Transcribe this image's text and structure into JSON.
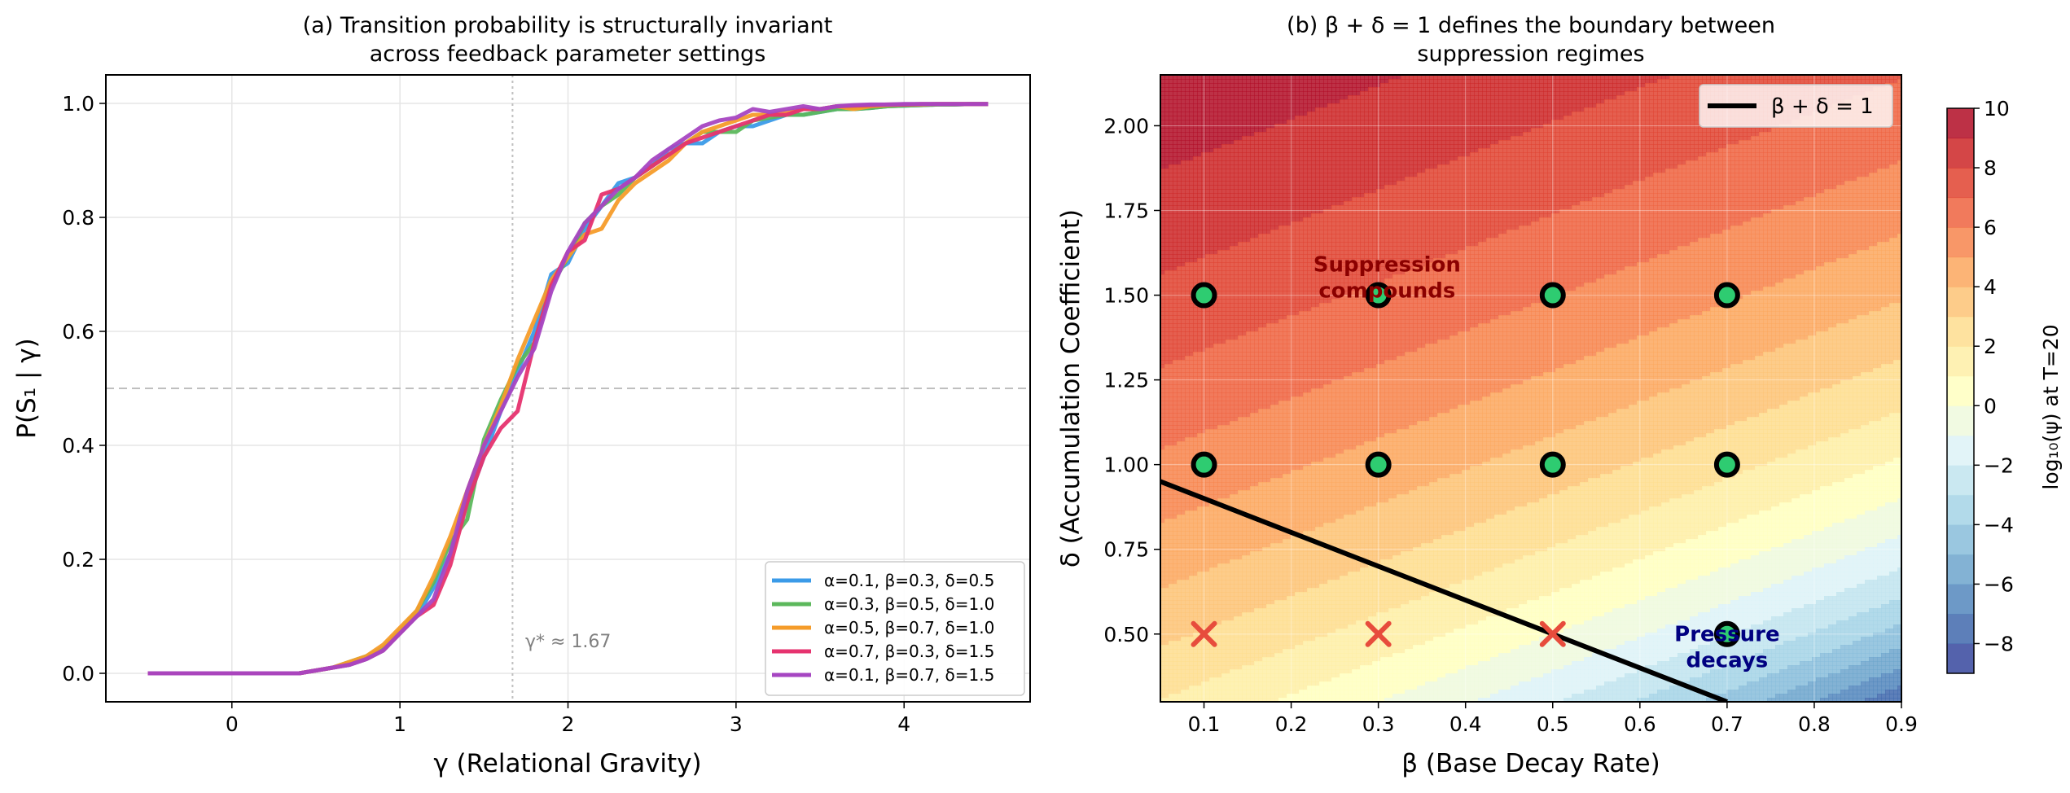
{
  "colors": {
    "series": [
      "#3b9be8",
      "#5cb85c",
      "#f59c2a",
      "#e6336f",
      "#a646c2"
    ],
    "boundary": "#000000",
    "marker_fill": "#2ecc71",
    "cross": "#e74c3c",
    "annot_dark_red": "#8b0000",
    "annot_navy": "#000080",
    "grid": "#e6e6e6",
    "ref_line": "#bfbfbf"
  },
  "chart_data": [
    {
      "type": "line",
      "title_line1": "(a)  Transition probability is structurally invariant",
      "title_line2": "across feedback parameter settings",
      "xlabel": "γ  (Relational Gravity)",
      "ylabel": "P(S₁ | γ)",
      "xlim": [
        -0.75,
        4.75
      ],
      "ylim": [
        -0.05,
        1.05
      ],
      "x_ticks": [
        0,
        1,
        2,
        3,
        4
      ],
      "x_tick_labels": [
        "0",
        "1",
        "2",
        "3",
        "4"
      ],
      "y_ticks": [
        0.0,
        0.2,
        0.4,
        0.6,
        0.8,
        1.0
      ],
      "y_tick_labels": [
        "0.0",
        "0.2",
        "0.4",
        "0.6",
        "0.8",
        "1.0"
      ],
      "grid": true,
      "threshold_x": 1.67,
      "threshold_label": "γ* ≈ 1.67",
      "half_line_y": 0.5,
      "legend_position": "lower-right",
      "x": [
        -0.5,
        -0.4,
        -0.3,
        -0.2,
        -0.1,
        0.0,
        0.1,
        0.2,
        0.3,
        0.4,
        0.5,
        0.6,
        0.7,
        0.8,
        0.9,
        1.0,
        1.1,
        1.2,
        1.3,
        1.4,
        1.5,
        1.6,
        1.7,
        1.8,
        1.9,
        2.0,
        2.1,
        2.2,
        2.3,
        2.4,
        2.5,
        2.6,
        2.7,
        2.8,
        2.9,
        3.0,
        3.1,
        3.2,
        3.3,
        3.4,
        3.5,
        3.6,
        3.7,
        3.8,
        3.9,
        4.0,
        4.1,
        4.2,
        4.3,
        4.4,
        4.5
      ],
      "series": [
        {
          "name": "α=0.1, β=0.3, δ=0.5",
          "values": [
            0,
            0,
            0,
            0,
            0,
            0,
            0,
            0,
            0,
            0,
            0.005,
            0.01,
            0.015,
            0.025,
            0.04,
            0.07,
            0.1,
            0.15,
            0.21,
            0.3,
            0.38,
            0.46,
            0.53,
            0.6,
            0.7,
            0.72,
            0.78,
            0.82,
            0.86,
            0.87,
            0.89,
            0.92,
            0.93,
            0.93,
            0.95,
            0.96,
            0.96,
            0.97,
            0.98,
            0.98,
            0.985,
            0.99,
            0.99,
            0.992,
            0.995,
            0.996,
            0.997,
            0.998,
            0.998,
            0.999,
            0.999
          ]
        },
        {
          "name": "α=0.3, β=0.5, δ=1.0",
          "values": [
            0,
            0,
            0,
            0,
            0,
            0,
            0,
            0,
            0,
            0,
            0.005,
            0.01,
            0.02,
            0.03,
            0.045,
            0.075,
            0.11,
            0.16,
            0.23,
            0.27,
            0.41,
            0.48,
            0.54,
            0.58,
            0.68,
            0.73,
            0.79,
            0.82,
            0.84,
            0.87,
            0.89,
            0.91,
            0.93,
            0.95,
            0.95,
            0.95,
            0.97,
            0.975,
            0.98,
            0.98,
            0.985,
            0.99,
            0.99,
            0.992,
            0.995,
            0.996,
            0.997,
            0.998,
            0.998,
            0.999,
            0.999
          ]
        },
        {
          "name": "α=0.5, β=0.7, δ=1.0",
          "values": [
            0,
            0,
            0,
            0,
            0,
            0,
            0,
            0,
            0,
            0,
            0.005,
            0.01,
            0.02,
            0.03,
            0.05,
            0.08,
            0.11,
            0.17,
            0.24,
            0.32,
            0.4,
            0.47,
            0.55,
            0.62,
            0.69,
            0.73,
            0.77,
            0.78,
            0.83,
            0.86,
            0.88,
            0.9,
            0.93,
            0.95,
            0.96,
            0.97,
            0.98,
            0.98,
            0.985,
            0.99,
            0.99,
            0.995,
            0.99,
            0.995,
            0.997,
            0.998,
            0.998,
            0.999,
            0.999,
            0.999,
            0.999
          ]
        },
        {
          "name": "α=0.7, β=0.3, δ=1.5",
          "values": [
            0,
            0,
            0,
            0,
            0,
            0,
            0,
            0,
            0,
            0,
            0.005,
            0.01,
            0.015,
            0.025,
            0.04,
            0.07,
            0.1,
            0.12,
            0.19,
            0.3,
            0.38,
            0.43,
            0.46,
            0.58,
            0.68,
            0.74,
            0.76,
            0.84,
            0.85,
            0.87,
            0.89,
            0.91,
            0.93,
            0.94,
            0.95,
            0.96,
            0.97,
            0.98,
            0.98,
            0.99,
            0.99,
            0.995,
            0.996,
            0.997,
            0.998,
            0.998,
            0.999,
            0.999,
            0.999,
            0.999,
            0.999
          ]
        },
        {
          "name": "α=0.1, β=0.7, δ=1.5",
          "values": [
            0,
            0,
            0,
            0,
            0,
            0,
            0,
            0,
            0,
            0,
            0.005,
            0.01,
            0.015,
            0.025,
            0.04,
            0.07,
            0.1,
            0.13,
            0.21,
            0.32,
            0.4,
            0.46,
            0.52,
            0.57,
            0.67,
            0.74,
            0.79,
            0.82,
            0.85,
            0.87,
            0.9,
            0.92,
            0.94,
            0.96,
            0.97,
            0.975,
            0.99,
            0.985,
            0.99,
            0.995,
            0.99,
            0.995,
            0.997,
            0.998,
            0.998,
            0.999,
            0.999,
            0.999,
            0.999,
            0.999,
            0.999
          ]
        }
      ]
    },
    {
      "type": "heatmap",
      "title_line1": "(b)  β + δ = 1 defines the boundary between",
      "title_line2": "suppression regimes",
      "xlabel": "β  (Base Decay Rate)",
      "ylabel": "δ  (Accumulation Coefficient)",
      "xlim": [
        0.05,
        0.9
      ],
      "ylim": [
        0.3,
        2.15
      ],
      "x_ticks": [
        0.1,
        0.2,
        0.3,
        0.4,
        0.5,
        0.6,
        0.7,
        0.8,
        0.9
      ],
      "x_tick_labels": [
        "0.1",
        "0.2",
        "0.3",
        "0.4",
        "0.5",
        "0.6",
        "0.7",
        "0.8",
        "0.9"
      ],
      "y_ticks": [
        0.5,
        0.75,
        1.0,
        1.25,
        1.5,
        1.75,
        2.0
      ],
      "y_tick_labels": [
        "0.50",
        "0.75",
        "1.00",
        "1.25",
        "1.50",
        "1.75",
        "2.00"
      ],
      "colorbar_label": "log₁₀(ψ) at T=20",
      "colorbar_range": [
        -9,
        10
      ],
      "colorbar_ticks": [
        -8,
        -6,
        -4,
        -2,
        0,
        2,
        4,
        6,
        8,
        10
      ],
      "colorbar_tick_labels": [
        "−8",
        "−6",
        "−4",
        "−2",
        "0",
        "2",
        "4",
        "6",
        "8",
        "10"
      ],
      "contour_levels": [
        -9,
        -8,
        -7,
        -6,
        -5,
        -4,
        -3,
        -2,
        -1,
        0,
        1,
        2,
        3,
        4,
        5,
        6,
        7,
        8,
        9,
        10
      ],
      "field": "log10_psi = 20 * log10(1 - beta + delta)",
      "boundary_label": "β + δ = 1",
      "legend_position": "top-right",
      "boundary_line": {
        "x": [
          0.05,
          0.7
        ],
        "y": [
          0.95,
          0.3
        ]
      },
      "circles": [
        [
          0.1,
          1.5
        ],
        [
          0.3,
          1.5
        ],
        [
          0.5,
          1.5
        ],
        [
          0.7,
          1.5
        ],
        [
          0.1,
          1.0
        ],
        [
          0.3,
          1.0
        ],
        [
          0.5,
          1.0
        ],
        [
          0.7,
          1.0
        ],
        [
          0.7,
          0.5
        ]
      ],
      "crosses": [
        [
          0.1,
          0.5
        ],
        [
          0.3,
          0.5
        ],
        [
          0.5,
          0.5
        ]
      ],
      "annotations": [
        {
          "text_line1": "Suppression",
          "text_line2": "compounds",
          "x": 0.31,
          "y": 1.555,
          "color": "annot_dark_red"
        },
        {
          "text_line1": "Pressure",
          "text_line2": "decays",
          "x": 0.7,
          "y": 0.465,
          "color": "annot_navy"
        }
      ]
    }
  ]
}
